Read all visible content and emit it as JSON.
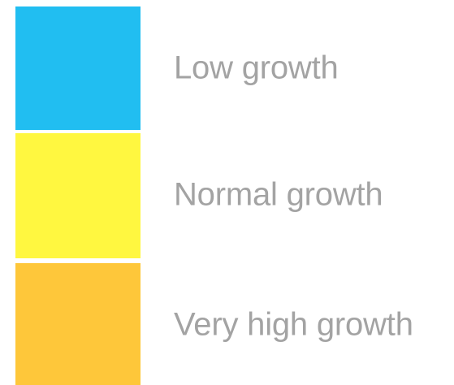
{
  "legend": {
    "items": [
      {
        "label": "Low growth",
        "color": "#21BEF1"
      },
      {
        "label": "Normal growth",
        "color": "#FFF740"
      },
      {
        "label": "Very high growth",
        "color": "#FEC73A"
      }
    ]
  }
}
